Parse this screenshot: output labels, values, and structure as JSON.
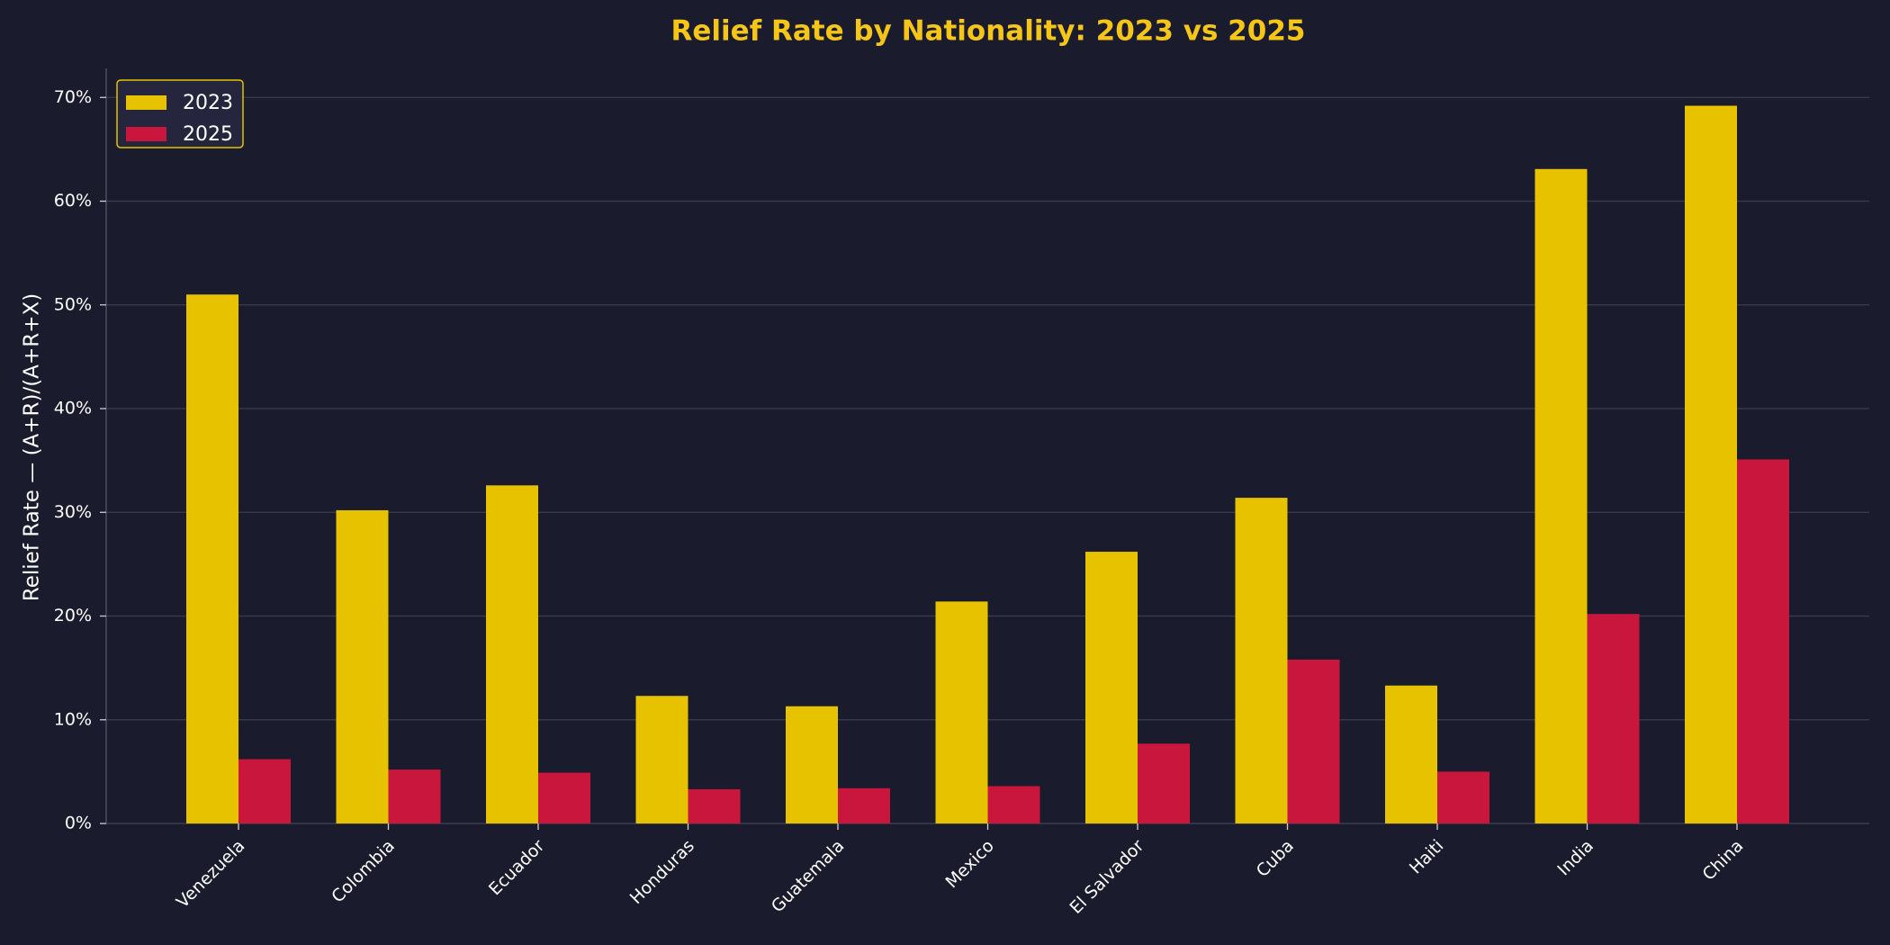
{
  "chart_data": {
    "type": "grouped-bar",
    "title": "Relief Rate by Nationality: 2023 vs 2025",
    "y_label": "Relief Rate — (A+R)/(A+R+X)",
    "categories": [
      "Venezuela",
      "Colombia",
      "Ecuador",
      "Honduras",
      "Guatemala",
      "Mexico",
      "El Salvador",
      "Cuba",
      "Haiti",
      "India",
      "China"
    ],
    "series": [
      {
        "name": "2023",
        "color": "#e6c200",
        "values": [
          51.0,
          30.2,
          32.6,
          12.3,
          11.3,
          21.4,
          26.2,
          31.4,
          13.3,
          63.1,
          69.2
        ]
      },
      {
        "name": "2025",
        "color": "#c8163c",
        "values": [
          6.2,
          5.2,
          4.9,
          3.3,
          3.4,
          3.6,
          7.7,
          15.8,
          5.0,
          20.2,
          35.1
        ]
      }
    ],
    "ylim": [
      0,
      72.8
    ],
    "yticks": [
      {
        "value": 0,
        "label": "0%"
      },
      {
        "value": 10,
        "label": "10%"
      },
      {
        "value": 20,
        "label": "20%"
      },
      {
        "value": 30,
        "label": "30%"
      },
      {
        "value": 40,
        "label": "40%"
      },
      {
        "value": 50,
        "label": "50%"
      },
      {
        "value": 60,
        "label": "60%"
      },
      {
        "value": 70,
        "label": "70%"
      }
    ],
    "grid": true,
    "legend": "upper-left"
  }
}
